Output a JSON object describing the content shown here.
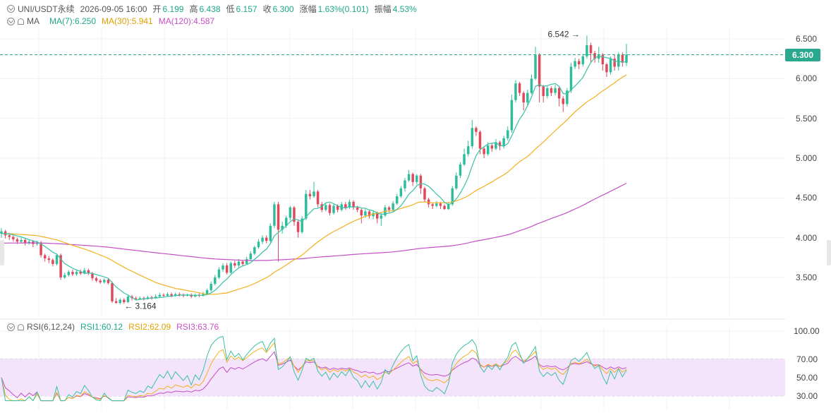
{
  "header": {
    "symbol": "UNI/USDT永续",
    "datetime": "2026-09-05 16:00",
    "open_label": "开",
    "open": "6.199",
    "high_label": "高",
    "high": "6.438",
    "low_label": "低",
    "low": "6.157",
    "close_label": "收",
    "close": "6.300",
    "change_label": "涨幅",
    "change": "1.63%(0.101)",
    "amp_label": "振幅",
    "amp": "4.53%"
  },
  "ma_legend": {
    "name": "MA",
    "ma7": "MA(7):6.250",
    "ma30": "MA(30):5.941",
    "ma120": "MA(120):4.587"
  },
  "rsi_legend": {
    "name": "RSI(6,12,24)",
    "rsi1": "RSI1:60.12",
    "rsi2": "RSI2:62.09",
    "rsi3": "RSI3:63.76"
  },
  "price_axis": [
    "6.500",
    "6.000",
    "5.500",
    "5.000",
    "4.500",
    "4.000",
    "3.500"
  ],
  "rsi_axis": [
    "100.00",
    "70.00",
    "50.00",
    "30.00"
  ],
  "last_price": "6.300",
  "annotations": {
    "high_mark": "6.542",
    "low_mark": "3.164"
  },
  "colors": {
    "up": "#2ebd9a",
    "down": "#e0485c",
    "ma7": "#38c1a7",
    "ma30": "#f2b01e",
    "ma120": "#c64ec6",
    "rsi_band": "#f3e3fb"
  },
  "chart_data": {
    "type": "candlestick",
    "ylim": [
      3.0,
      6.7
    ],
    "rsi_ylim": [
      25,
      100
    ],
    "candles": [
      [
        4.05,
        4.08,
        4.12,
        4.0
      ],
      [
        4.08,
        4.03,
        4.1,
        3.99
      ],
      [
        4.03,
        4.01,
        4.06,
        3.97
      ],
      [
        4.01,
        3.98,
        4.03,
        3.95
      ],
      [
        3.98,
        3.95,
        4.0,
        3.92
      ],
      [
        3.95,
        3.97,
        4.0,
        3.93
      ],
      [
        3.97,
        3.93,
        3.99,
        3.9
      ],
      [
        3.93,
        3.95,
        3.98,
        3.91
      ],
      [
        3.95,
        3.92,
        3.97,
        3.88
      ],
      [
        3.92,
        3.94,
        3.96,
        3.9
      ],
      [
        3.94,
        3.78,
        3.96,
        3.75
      ],
      [
        3.78,
        3.74,
        3.8,
        3.7
      ],
      [
        3.74,
        3.72,
        3.77,
        3.68
      ],
      [
        3.72,
        3.67,
        3.74,
        3.64
      ],
      [
        3.67,
        3.78,
        3.8,
        3.65
      ],
      [
        3.78,
        3.5,
        3.8,
        3.47
      ],
      [
        3.5,
        3.53,
        3.56,
        3.48
      ],
      [
        3.53,
        3.57,
        3.59,
        3.51
      ],
      [
        3.57,
        3.54,
        3.6,
        3.52
      ],
      [
        3.54,
        3.57,
        3.59,
        3.52
      ],
      [
        3.57,
        3.55,
        3.6,
        3.53
      ],
      [
        3.55,
        3.59,
        3.62,
        3.54
      ],
      [
        3.59,
        3.55,
        3.61,
        3.53
      ],
      [
        3.55,
        3.49,
        3.57,
        3.46
      ],
      [
        3.49,
        3.46,
        3.51,
        3.44
      ],
      [
        3.46,
        3.44,
        3.48,
        3.42
      ],
      [
        3.44,
        3.47,
        3.49,
        3.42
      ],
      [
        3.47,
        3.43,
        3.49,
        3.41
      ],
      [
        3.43,
        3.2,
        3.45,
        3.18
      ],
      [
        3.2,
        3.18,
        3.24,
        3.17
      ],
      [
        3.18,
        3.22,
        3.24,
        3.16
      ],
      [
        3.22,
        3.19,
        3.24,
        3.17
      ],
      [
        3.19,
        3.26,
        3.28,
        3.18
      ],
      [
        3.26,
        3.24,
        3.28,
        3.21
      ],
      [
        3.24,
        3.23,
        3.26,
        3.21
      ],
      [
        3.23,
        3.24,
        3.26,
        3.22
      ],
      [
        3.24,
        3.23,
        3.26,
        3.21
      ],
      [
        3.23,
        3.25,
        3.27,
        3.22
      ],
      [
        3.25,
        3.24,
        3.27,
        3.22
      ],
      [
        3.24,
        3.26,
        3.29,
        3.23
      ],
      [
        3.26,
        3.28,
        3.31,
        3.25
      ],
      [
        3.28,
        3.27,
        3.3,
        3.25
      ],
      [
        3.27,
        3.29,
        3.31,
        3.26
      ],
      [
        3.29,
        3.27,
        3.31,
        3.25
      ],
      [
        3.27,
        3.29,
        3.31,
        3.26
      ],
      [
        3.29,
        3.28,
        3.31,
        3.26
      ],
      [
        3.28,
        3.27,
        3.3,
        3.25
      ],
      [
        3.27,
        3.28,
        3.3,
        3.26
      ],
      [
        3.28,
        3.26,
        3.3,
        3.24
      ],
      [
        3.26,
        3.28,
        3.3,
        3.25
      ],
      [
        3.28,
        3.27,
        3.3,
        3.25
      ],
      [
        3.27,
        3.29,
        3.32,
        3.26
      ],
      [
        3.29,
        3.34,
        3.36,
        3.28
      ],
      [
        3.34,
        3.42,
        3.45,
        3.32
      ],
      [
        3.42,
        3.5,
        3.53,
        3.4
      ],
      [
        3.5,
        3.6,
        3.63,
        3.48
      ],
      [
        3.6,
        3.65,
        3.68,
        3.57
      ],
      [
        3.65,
        3.56,
        3.68,
        3.54
      ],
      [
        3.56,
        3.68,
        3.7,
        3.55
      ],
      [
        3.68,
        3.65,
        3.71,
        3.62
      ],
      [
        3.65,
        3.7,
        3.73,
        3.63
      ],
      [
        3.7,
        3.67,
        3.72,
        3.64
      ],
      [
        3.67,
        3.73,
        3.76,
        3.66
      ],
      [
        3.73,
        3.8,
        3.83,
        3.71
      ],
      [
        3.8,
        3.88,
        3.9,
        3.78
      ],
      [
        3.88,
        3.95,
        3.98,
        3.86
      ],
      [
        3.95,
        4.0,
        4.03,
        3.92
      ],
      [
        4.0,
        3.96,
        4.03,
        3.93
      ],
      [
        3.96,
        4.15,
        4.18,
        3.94
      ],
      [
        4.15,
        4.42,
        4.45,
        4.12
      ],
      [
        4.42,
        4.1,
        4.45,
        3.7
      ],
      [
        4.1,
        4.15,
        4.2,
        4.05
      ],
      [
        4.15,
        4.25,
        4.28,
        4.12
      ],
      [
        4.25,
        4.38,
        4.4,
        4.22
      ],
      [
        4.38,
        4.2,
        4.4,
        4.15
      ],
      [
        4.2,
        4.07,
        4.23,
        4.0
      ],
      [
        4.07,
        4.24,
        4.27,
        4.05
      ],
      [
        4.24,
        4.55,
        4.6,
        4.22
      ],
      [
        4.55,
        4.52,
        4.6,
        4.48
      ],
      [
        4.52,
        4.58,
        4.7,
        4.5
      ],
      [
        4.58,
        4.42,
        4.6,
        4.38
      ],
      [
        4.42,
        4.35,
        4.45,
        4.32
      ],
      [
        4.35,
        4.41,
        4.44,
        4.33
      ],
      [
        4.41,
        4.31,
        4.43,
        4.28
      ],
      [
        4.31,
        4.4,
        4.43,
        4.29
      ],
      [
        4.4,
        4.35,
        4.42,
        4.32
      ],
      [
        4.35,
        4.42,
        4.45,
        4.33
      ],
      [
        4.42,
        4.38,
        4.45,
        4.35
      ],
      [
        4.38,
        4.45,
        4.48,
        4.36
      ],
      [
        4.45,
        4.38,
        4.47,
        4.35
      ],
      [
        4.38,
        4.35,
        4.4,
        4.32
      ],
      [
        4.35,
        4.28,
        4.37,
        4.18
      ],
      [
        4.28,
        4.33,
        4.36,
        4.25
      ],
      [
        4.33,
        4.27,
        4.35,
        4.24
      ],
      [
        4.27,
        4.31,
        4.34,
        4.23
      ],
      [
        4.31,
        4.24,
        4.33,
        4.18
      ],
      [
        4.24,
        4.28,
        4.31,
        4.15
      ],
      [
        4.28,
        4.38,
        4.41,
        4.26
      ],
      [
        4.38,
        4.35,
        4.4,
        4.32
      ],
      [
        4.35,
        4.43,
        4.46,
        4.33
      ],
      [
        4.43,
        4.52,
        4.55,
        4.41
      ],
      [
        4.52,
        4.62,
        4.65,
        4.5
      ],
      [
        4.62,
        4.72,
        4.75,
        4.58
      ],
      [
        4.72,
        4.8,
        4.85,
        4.7
      ],
      [
        4.8,
        4.7,
        4.82,
        4.65
      ],
      [
        4.7,
        4.78,
        4.8,
        4.67
      ],
      [
        4.78,
        4.62,
        4.8,
        4.55
      ],
      [
        4.62,
        4.48,
        4.64,
        4.45
      ],
      [
        4.48,
        4.42,
        4.5,
        4.38
      ],
      [
        4.42,
        4.4,
        4.44,
        4.36
      ],
      [
        4.4,
        4.43,
        4.46,
        4.38
      ],
      [
        4.43,
        4.4,
        4.45,
        4.36
      ],
      [
        4.4,
        4.36,
        4.42,
        4.35
      ],
      [
        4.36,
        4.42,
        4.45,
        4.35
      ],
      [
        4.42,
        4.62,
        4.65,
        4.4
      ],
      [
        4.62,
        4.78,
        4.82,
        4.6
      ],
      [
        4.78,
        4.92,
        4.95,
        4.75
      ],
      [
        4.92,
        5.05,
        5.12,
        4.9
      ],
      [
        5.05,
        5.15,
        5.22,
        5.02
      ],
      [
        5.15,
        5.38,
        5.48,
        5.12
      ],
      [
        5.38,
        5.33,
        5.4,
        5.28
      ],
      [
        5.33,
        5.12,
        5.35,
        5.05
      ],
      [
        5.12,
        5.05,
        5.15,
        5.0
      ],
      [
        5.05,
        5.16,
        5.2,
        5.03
      ],
      [
        5.16,
        5.12,
        5.19,
        5.08
      ],
      [
        5.12,
        5.2,
        5.24,
        5.1
      ],
      [
        5.2,
        5.15,
        5.22,
        5.1
      ],
      [
        5.15,
        5.25,
        5.28,
        5.12
      ],
      [
        5.25,
        5.35,
        5.4,
        5.22
      ],
      [
        5.35,
        5.73,
        5.8,
        5.32
      ],
      [
        5.73,
        5.94,
        5.98,
        5.7
      ],
      [
        5.94,
        5.82,
        5.96,
        5.78
      ],
      [
        5.82,
        5.7,
        5.84,
        5.6
      ],
      [
        5.7,
        5.82,
        5.86,
        5.66
      ],
      [
        5.82,
        6.0,
        6.05,
        5.8
      ],
      [
        6.0,
        6.3,
        6.4,
        5.98
      ],
      [
        6.3,
        5.9,
        6.32,
        5.7
      ],
      [
        5.9,
        5.78,
        5.92,
        5.7
      ],
      [
        5.78,
        5.88,
        5.91,
        5.75
      ],
      [
        5.88,
        5.82,
        5.9,
        5.78
      ],
      [
        5.82,
        5.88,
        5.92,
        5.79
      ],
      [
        5.88,
        5.75,
        5.91,
        5.65
      ],
      [
        5.75,
        5.68,
        5.78,
        5.58
      ],
      [
        5.68,
        5.85,
        5.88,
        5.65
      ],
      [
        5.85,
        6.15,
        6.2,
        5.82
      ],
      [
        6.15,
        6.22,
        6.26,
        6.12
      ],
      [
        6.22,
        6.18,
        6.25,
        6.12
      ],
      [
        6.18,
        6.28,
        6.31,
        6.15
      ],
      [
        6.28,
        6.42,
        6.54,
        6.25
      ],
      [
        6.42,
        6.32,
        6.45,
        6.2
      ],
      [
        6.32,
        6.25,
        6.35,
        6.2
      ],
      [
        6.25,
        6.3,
        6.4,
        6.2
      ],
      [
        6.3,
        6.18,
        6.32,
        6.1
      ],
      [
        6.18,
        6.08,
        6.2,
        6.02
      ],
      [
        6.08,
        6.25,
        6.28,
        6.05
      ],
      [
        6.25,
        6.15,
        6.3,
        6.1
      ],
      [
        6.15,
        6.3,
        6.33,
        6.1
      ],
      [
        6.3,
        6.2,
        6.33,
        6.15
      ],
      [
        6.199,
        6.3,
        6.438,
        6.157
      ]
    ]
  }
}
